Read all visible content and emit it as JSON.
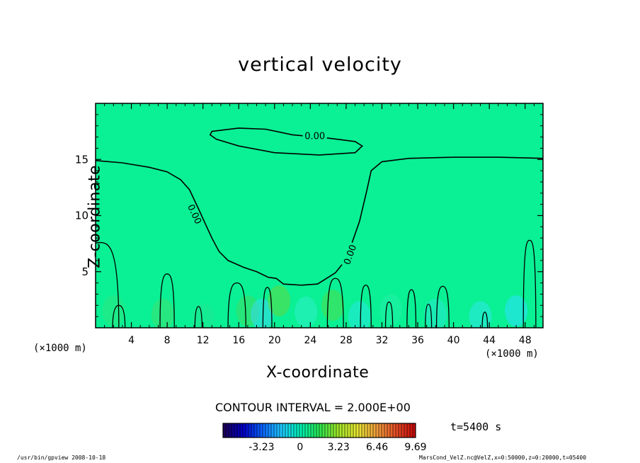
{
  "chart_data": {
    "type": "contour",
    "title": "vertical velocity",
    "xlabel": "X-coordinate",
    "ylabel": "Z-coordinate",
    "x_unit": "(×1000 m)",
    "xlim": [
      0,
      50
    ],
    "ylim": [
      0,
      20
    ],
    "x_ticks": [
      4,
      8,
      12,
      16,
      20,
      24,
      28,
      32,
      36,
      40,
      44,
      48
    ],
    "y_ticks": [
      5,
      10,
      15
    ],
    "contour_interval_text": "CONTOUR INTERVAL = 2.000E+00",
    "contour_label": "0.00",
    "zero_contour_main": [
      [
        0,
        14.9
      ],
      [
        3,
        14.7
      ],
      [
        6,
        14.3
      ],
      [
        8,
        13.9
      ],
      [
        9.5,
        13.2
      ],
      [
        10.5,
        12.3
      ],
      [
        11.5,
        10.6
      ],
      [
        12.3,
        9.2
      ],
      [
        13,
        8.0
      ],
      [
        13.8,
        6.8
      ],
      [
        14.8,
        6.0
      ],
      [
        16.5,
        5.4
      ],
      [
        18,
        5.0
      ],
      [
        19.3,
        4.5
      ],
      [
        20.2,
        4.4
      ],
      [
        21,
        3.9
      ],
      [
        23,
        3.8
      ],
      [
        24.8,
        3.9
      ],
      [
        25.8,
        4.4
      ],
      [
        26.8,
        4.9
      ],
      [
        27.5,
        5.6
      ],
      [
        28.5,
        7.2
      ],
      [
        29.5,
        9.5
      ],
      [
        30.3,
        12.2
      ],
      [
        30.8,
        14.0
      ],
      [
        32,
        14.8
      ],
      [
        35,
        15.1
      ],
      [
        40,
        15.2
      ],
      [
        45,
        15.2
      ],
      [
        50,
        15.1
      ]
    ],
    "zero_contour_upper": [
      [
        13,
        17.5
      ],
      [
        16,
        17.8
      ],
      [
        19,
        17.7
      ],
      [
        22,
        17.2
      ],
      [
        26,
        16.9
      ],
      [
        29,
        16.6
      ],
      [
        29.8,
        16.2
      ],
      [
        29,
        15.6
      ],
      [
        25,
        15.4
      ],
      [
        20,
        15.6
      ],
      [
        16,
        16.2
      ],
      [
        13.5,
        16.8
      ],
      [
        12.8,
        17.2
      ],
      [
        13,
        17.5
      ]
    ],
    "colorbar": {
      "min": -6.46,
      "max": 9.69,
      "tick_labels": [
        "-3.23",
        "0",
        "3.23",
        "6.46",
        "9.69"
      ],
      "tick_values": [
        -3.23,
        0,
        3.23,
        6.46,
        9.69
      ],
      "colors": [
        "#1a005a",
        "#0000c8",
        "#0a64ff",
        "#1ec8ff",
        "#00f0b4",
        "#28e650",
        "#a0e628",
        "#e6e632",
        "#f0a03c",
        "#e65028",
        "#c80a0a"
      ]
    },
    "background_color": "#0af094",
    "grid": false
  },
  "meta": {
    "time_label": "t=5400 s",
    "footer_left": "/usr/bin/gpview   2008-10-18",
    "footer_right": "MarsCond_VelZ.nc@VelZ,x=0:50000,z=0:20000,t=05400"
  }
}
